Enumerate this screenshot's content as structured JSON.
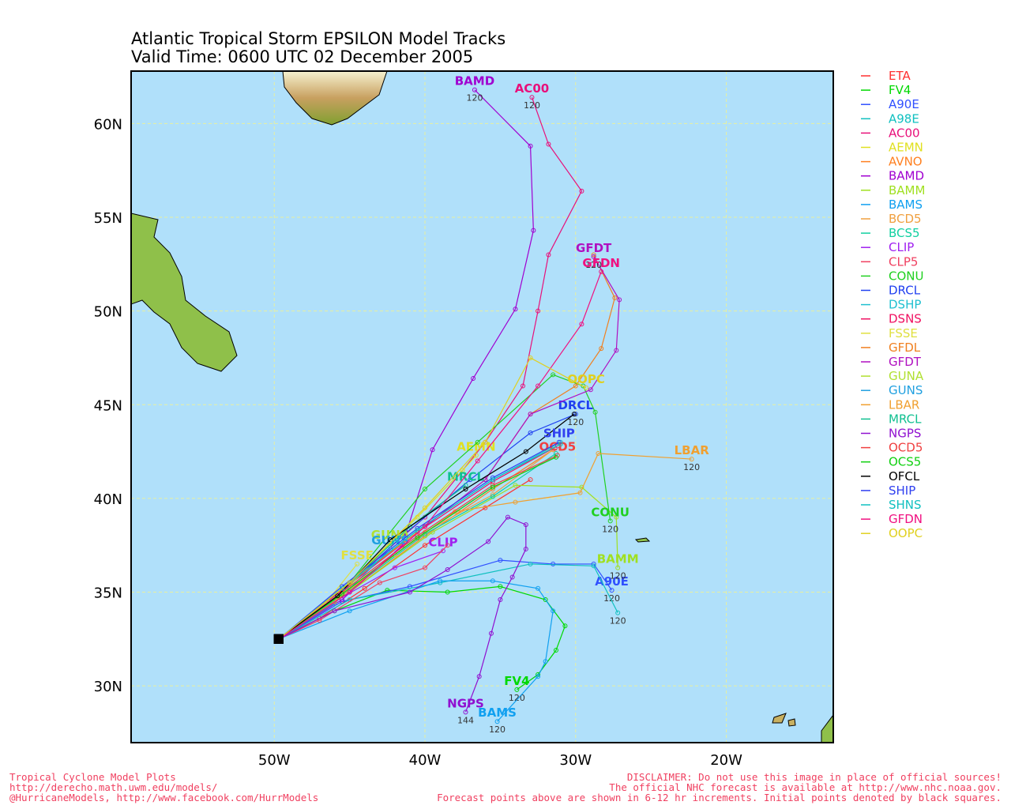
{
  "header": {
    "title": "Atlantic Tropical Storm EPSILON Model Tracks",
    "subtitle": "Valid Time: 0600 UTC 02 December 2005"
  },
  "map": {
    "lon_range": [
      -59.5,
      -12.9
    ],
    "lat_range": [
      26.97,
      62.8
    ],
    "lon_ticks": [
      {
        "value": -50,
        "label": "50W"
      },
      {
        "value": -40,
        "label": "40W"
      },
      {
        "value": -30,
        "label": "30W"
      },
      {
        "value": -20,
        "label": "20W"
      }
    ],
    "lat_ticks": [
      {
        "value": 60,
        "label": "60N"
      },
      {
        "value": 55,
        "label": "55N"
      },
      {
        "value": 50,
        "label": "50N"
      },
      {
        "value": 45,
        "label": "45N"
      },
      {
        "value": 40,
        "label": "40N"
      },
      {
        "value": 35,
        "label": "35N"
      },
      {
        "value": 30,
        "label": "30N"
      }
    ],
    "ocean_color": "#b0e0fa",
    "grid_color": "#e8f0a0"
  },
  "models": [
    {
      "name": "ETA",
      "color": "#ff3030",
      "track": [
        [
          -49.7,
          32.5
        ],
        [
          -47,
          33.6
        ],
        [
          -44,
          35.2
        ],
        [
          -40,
          37.5
        ],
        [
          -36,
          39.5
        ],
        [
          -33,
          41
        ]
      ]
    },
    {
      "name": "FV4",
      "color": "#00d800",
      "map_label": true,
      "end_hour": 120,
      "track": [
        [
          -49.7,
          32.5
        ],
        [
          -46,
          34
        ],
        [
          -42.5,
          35.1
        ],
        [
          -38.5,
          35
        ],
        [
          -35,
          35.3
        ],
        [
          -32,
          34.6
        ],
        [
          -30.7,
          33.2
        ],
        [
          -31.3,
          31.9
        ],
        [
          -32.5,
          30.6
        ],
        [
          -33.9,
          29.8
        ]
      ]
    },
    {
      "name": "A90E",
      "color": "#3050ff",
      "map_label": true,
      "end_hour": 120,
      "track": [
        [
          -49.7,
          32.5
        ],
        [
          -45.5,
          34.5
        ],
        [
          -41,
          35.3
        ],
        [
          -35,
          36.7
        ],
        [
          -31.5,
          36.5
        ],
        [
          -28.8,
          36.5
        ],
        [
          -27.6,
          35.1
        ]
      ]
    },
    {
      "name": "A98E",
      "color": "#10c0c0",
      "end_hour": 120,
      "track": [
        [
          -49.7,
          32.5
        ],
        [
          -45,
          34.6
        ],
        [
          -39,
          35.5
        ],
        [
          -33,
          36.5
        ],
        [
          -28.8,
          36.4
        ],
        [
          -27.2,
          33.9
        ]
      ]
    },
    {
      "name": "AC00",
      "color": "#e8107a",
      "map_label": true,
      "end_hour": 120,
      "track": [
        [
          -49.7,
          32.5
        ],
        [
          -45,
          35.5
        ],
        [
          -40,
          39
        ],
        [
          -36,
          43
        ],
        [
          -33.5,
          46
        ],
        [
          -32.5,
          50
        ],
        [
          -31.8,
          53
        ],
        [
          -29.6,
          56.4
        ],
        [
          -31.8,
          58.9
        ],
        [
          -32.9,
          61.4
        ]
      ]
    },
    {
      "name": "AEMN",
      "color": "#e0e020",
      "map_label": true,
      "track": [
        [
          -49.7,
          32.5
        ],
        [
          -45,
          35.5
        ],
        [
          -40.5,
          39
        ],
        [
          -37.5,
          41.5
        ],
        [
          -36.6,
          42.3
        ]
      ]
    },
    {
      "name": "AVNO",
      "color": "#ff8020",
      "track": [
        [
          -49.7,
          32.5
        ],
        [
          -45,
          35
        ],
        [
          -40,
          38
        ],
        [
          -35.5,
          40.5
        ],
        [
          -31.5,
          42.6
        ]
      ]
    },
    {
      "name": "BAMD",
      "color": "#a000d0",
      "map_label": true,
      "end_hour": 120,
      "track": [
        [
          -49.7,
          32.5
        ],
        [
          -45.5,
          34.6
        ],
        [
          -41.5,
          37.5
        ],
        [
          -39.5,
          42.6
        ],
        [
          -36.8,
          46.4
        ],
        [
          -34,
          50.1
        ],
        [
          -32.8,
          54.3
        ],
        [
          -33,
          58.8
        ],
        [
          -36.7,
          61.8
        ]
      ]
    },
    {
      "name": "BAMM",
      "color": "#a0e020",
      "map_label": true,
      "end_hour": 120,
      "track": [
        [
          -49.7,
          32.5
        ],
        [
          -45,
          35
        ],
        [
          -39.5,
          38.2
        ],
        [
          -34,
          40.7
        ],
        [
          -29.6,
          40.6
        ],
        [
          -27.3,
          39
        ],
        [
          -27.2,
          36.3
        ]
      ]
    },
    {
      "name": "BAMS",
      "color": "#10a0f0",
      "map_label": true,
      "end_hour": 120,
      "track": [
        [
          -49.7,
          32.5
        ],
        [
          -45,
          34
        ],
        [
          -39,
          35.6
        ],
        [
          -35.5,
          35.6
        ],
        [
          -32.5,
          35.2
        ],
        [
          -31.5,
          34
        ],
        [
          -32,
          31.3
        ],
        [
          -32.5,
          30.5
        ],
        [
          -35.2,
          28.1
        ]
      ]
    },
    {
      "name": "BCD5",
      "color": "#f0a040",
      "track": [
        [
          -49.7,
          32.5
        ],
        [
          -45,
          35.2
        ],
        [
          -40,
          38.2
        ],
        [
          -35.5,
          40.2
        ],
        [
          -31.5,
          42.6
        ]
      ]
    },
    {
      "name": "BCS5",
      "color": "#10d0a0",
      "track": [
        [
          -49.7,
          32.5
        ],
        [
          -45,
          35.1
        ],
        [
          -40,
          38.1
        ],
        [
          -35.5,
          40.1
        ],
        [
          -31.3,
          42.4
        ]
      ]
    },
    {
      "name": "CLIP",
      "color": "#a020f0",
      "map_label": true,
      "track": [
        [
          -49.7,
          32.5
        ],
        [
          -46,
          34.5
        ],
        [
          -42,
          36.3
        ],
        [
          -38.8,
          37.2
        ]
      ]
    },
    {
      "name": "CLP5",
      "color": "#f04060",
      "track": [
        [
          -49.7,
          32.5
        ],
        [
          -47,
          33.5
        ],
        [
          -43,
          35.5
        ],
        [
          -40,
          36.3
        ],
        [
          -38.5,
          37.5
        ]
      ]
    },
    {
      "name": "CONU",
      "color": "#20d020",
      "map_label": true,
      "end_hour": 120,
      "track": [
        [
          -49.7,
          32.5
        ],
        [
          -45,
          35.5
        ],
        [
          -40,
          40.5
        ],
        [
          -36.5,
          43
        ],
        [
          -31.5,
          46.6
        ],
        [
          -29.5,
          46
        ],
        [
          -28.7,
          44.6
        ],
        [
          -27.7,
          38.8
        ]
      ]
    },
    {
      "name": "DRCL",
      "color": "#2040f0",
      "map_label": true,
      "end_hour": 120,
      "track": [
        [
          -49.7,
          32.5
        ],
        [
          -45.5,
          35
        ],
        [
          -41.5,
          38
        ],
        [
          -37,
          41
        ],
        [
          -33,
          43.5
        ],
        [
          -30,
          44.5
        ]
      ]
    },
    {
      "name": "DSHP",
      "color": "#20c0d0",
      "track": [
        [
          -49.7,
          32.5
        ],
        [
          -45.5,
          35.2
        ],
        [
          -40.5,
          38.3
        ],
        [
          -35.5,
          41
        ],
        [
          -31,
          43
        ]
      ]
    },
    {
      "name": "DSNS",
      "color": "#f01060",
      "track": [
        [
          -49.7,
          32.5
        ],
        [
          -45.5,
          35.1
        ],
        [
          -40.5,
          38.2
        ],
        [
          -35.5,
          40.9
        ],
        [
          -31.2,
          42.8
        ]
      ]
    },
    {
      "name": "FSSE",
      "color": "#e0e040",
      "map_label": true,
      "track": [
        [
          -49.7,
          32.5
        ],
        [
          -46.5,
          34.5
        ],
        [
          -44.5,
          36.5
        ]
      ]
    },
    {
      "name": "GFDL",
      "color": "#f08020",
      "track": [
        [
          -49.7,
          32.5
        ],
        [
          -45,
          35.5
        ],
        [
          -40,
          38.5
        ],
        [
          -36,
          41
        ],
        [
          -33,
          44.5
        ],
        [
          -30,
          46
        ],
        [
          -28.3,
          48
        ],
        [
          -27.4,
          50.7
        ],
        [
          -28.8,
          53
        ]
      ]
    },
    {
      "name": "GFDT",
      "color": "#b010c0",
      "map_label": true,
      "end_hour": 120,
      "track": [
        [
          -49.7,
          32.5
        ],
        [
          -45,
          35
        ],
        [
          -40,
          38.5
        ],
        [
          -36,
          41
        ],
        [
          -33,
          44.5
        ],
        [
          -29,
          45.8
        ],
        [
          -27.3,
          47.9
        ],
        [
          -27.1,
          50.6
        ],
        [
          -28.8,
          52.9
        ]
      ]
    },
    {
      "name": "GUNA",
      "color": "#b0e030",
      "map_label": true,
      "track": [
        [
          -49.7,
          32.5
        ],
        [
          -46,
          34.5
        ],
        [
          -42.3,
          37.6
        ]
      ]
    },
    {
      "name": "GUNS",
      "color": "#20a0e0",
      "map_label": true,
      "track": [
        [
          -49.7,
          32.5
        ],
        [
          -46,
          34.4
        ],
        [
          -42.3,
          37.3
        ]
      ]
    },
    {
      "name": "LBAR",
      "color": "#f0a030",
      "map_label": true,
      "end_hour": 120,
      "track": [
        [
          -49.7,
          32.5
        ],
        [
          -46,
          34.5
        ],
        [
          -42,
          37
        ],
        [
          -38,
          39.3
        ],
        [
          -34,
          39.8
        ],
        [
          -29.7,
          40.3
        ],
        [
          -28.5,
          42.4
        ],
        [
          -22.3,
          42.1
        ]
      ]
    },
    {
      "name": "MRCL",
      "color": "#10c090",
      "map_label": true,
      "track": [
        [
          -49.7,
          32.5
        ],
        [
          -45,
          35.5
        ],
        [
          -41,
          38.5
        ],
        [
          -37.3,
          40.7
        ]
      ]
    },
    {
      "name": "NGPS",
      "color": "#9010d0",
      "map_label": true,
      "end_hour": 144,
      "track": [
        [
          -49.7,
          32.5
        ],
        [
          -46,
          34
        ],
        [
          -41,
          35
        ],
        [
          -38.5,
          36.2
        ],
        [
          -35.8,
          37.7
        ],
        [
          -34.5,
          39
        ],
        [
          -33.3,
          38.6
        ],
        [
          -33.3,
          37.3
        ],
        [
          -34.2,
          35.8
        ],
        [
          -35,
          34.6
        ],
        [
          -35.6,
          32.8
        ],
        [
          -36.4,
          30.5
        ],
        [
          -37.3,
          28.6
        ]
      ]
    },
    {
      "name": "OCD5",
      "color": "#f04040",
      "map_label": true,
      "track": [
        [
          -49.7,
          32.5
        ],
        [
          -45.5,
          35
        ],
        [
          -40.5,
          38
        ],
        [
          -35.5,
          40.7
        ],
        [
          -31.2,
          42.3
        ]
      ]
    },
    {
      "name": "OCS5",
      "color": "#10d010",
      "track": [
        [
          -49.7,
          32.5
        ],
        [
          -45.5,
          34.9
        ],
        [
          -40.5,
          37.9
        ],
        [
          -35.5,
          40.6
        ],
        [
          -31.3,
          42.2
        ]
      ]
    },
    {
      "name": "OFCL",
      "color": "#000000",
      "track": [
        [
          -49.7,
          32.5
        ],
        [
          -45.8,
          34.8
        ],
        [
          -42.3,
          37.8
        ],
        [
          -37.3,
          40.5
        ],
        [
          -33.3,
          42.5
        ],
        [
          -30.1,
          44.5
        ]
      ]
    },
    {
      "name": "SHIP",
      "color": "#3040f0",
      "map_label": true,
      "track": [
        [
          -49.7,
          32.5
        ],
        [
          -45.5,
          35.3
        ],
        [
          -40.5,
          38.4
        ],
        [
          -35.5,
          41.1
        ],
        [
          -31.1,
          43
        ]
      ]
    },
    {
      "name": "SHNS",
      "color": "#10c0c0",
      "track": [
        [
          -49.7,
          32.5
        ],
        [
          -45.5,
          35.2
        ],
        [
          -40.5,
          38.3
        ],
        [
          -35.5,
          41
        ],
        [
          -31,
          42.9
        ]
      ]
    },
    {
      "name": "GFDN",
      "color": "#f01080",
      "map_label": true,
      "track": [
        [
          -49.7,
          32.5
        ],
        [
          -45,
          35
        ],
        [
          -40,
          38.5
        ],
        [
          -36.5,
          42
        ],
        [
          -32.5,
          46
        ],
        [
          -29.6,
          49.3
        ],
        [
          -28.3,
          52.1
        ]
      ]
    },
    {
      "name": "OOPC",
      "color": "#e0d020",
      "map_label": true,
      "track": [
        [
          -49.7,
          32.5
        ],
        [
          -45,
          35.5
        ],
        [
          -40,
          39.5
        ],
        [
          -36,
          43
        ],
        [
          -33,
          47.5
        ],
        [
          -29.3,
          45.9
        ]
      ]
    }
  ],
  "footer": {
    "left": [
      "Tropical Cyclone Model Plots",
      "http://derecho.math.uwm.edu/models/",
      "@HurricaneModels, http://www.facebook.com/HurrModels"
    ],
    "right": [
      "DISCLAIMER: Do not use this image in place of official sources!",
      "The official NHC forecast is available at http://www.nhc.noaa.gov.",
      "Forecast points above are shown in 6-12 hr increments. Initial points denoted by black squares."
    ]
  }
}
